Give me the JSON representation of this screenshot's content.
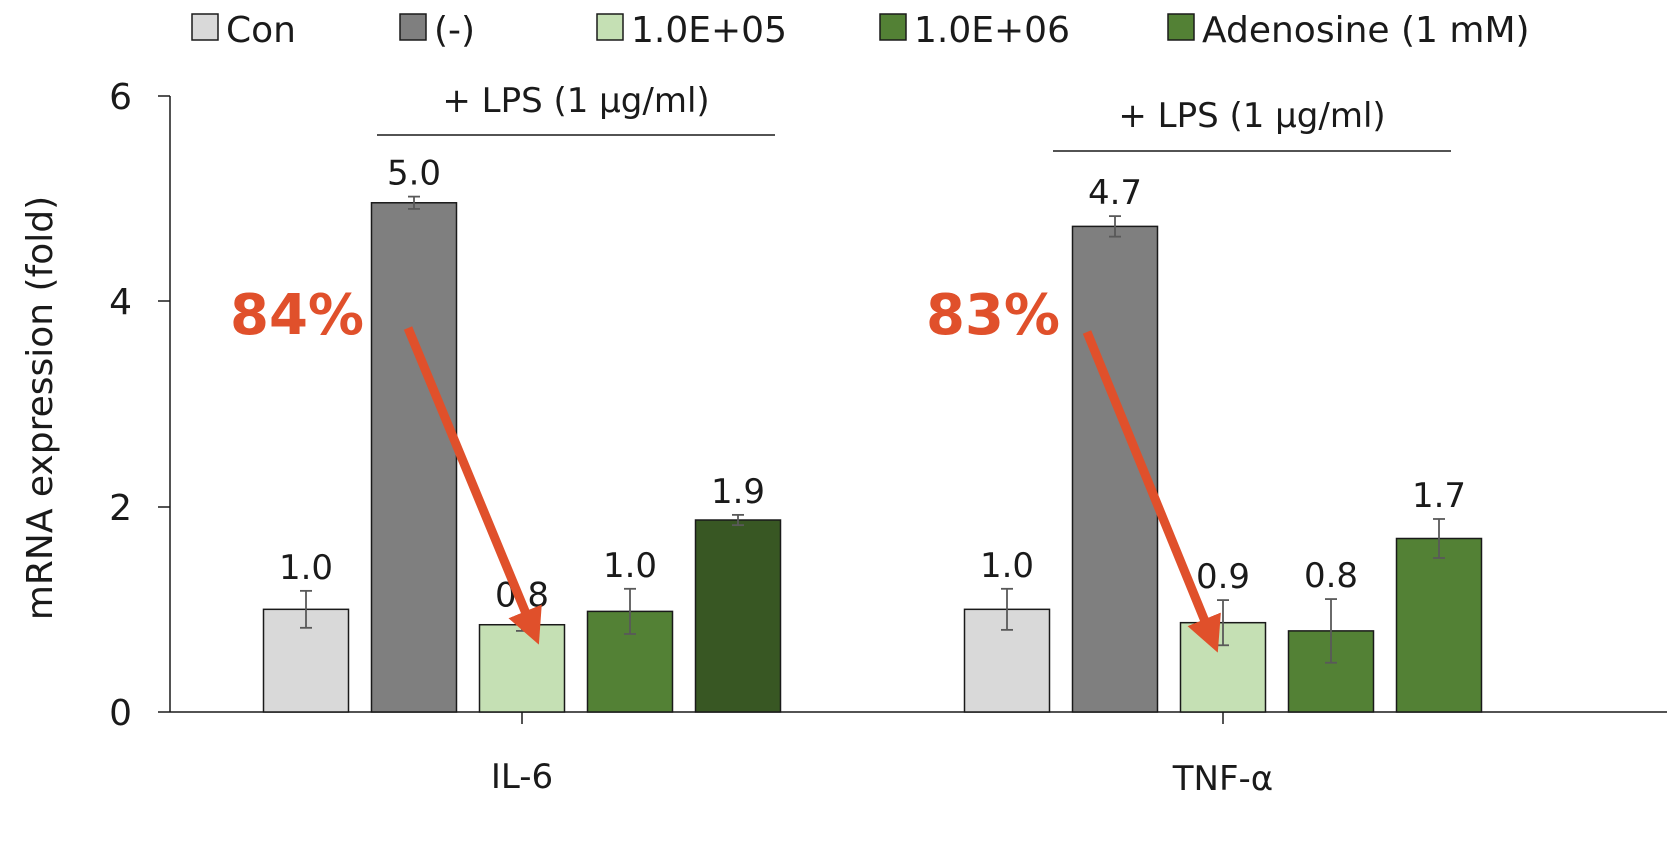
{
  "colors": {
    "con": "#d9d9d9",
    "neg": "#7f7f7f",
    "e05": "#c5e0b4",
    "e06": "#538135",
    "adenosine_il6": "#385723",
    "adenosine_tnf": "#538135",
    "arrow": "#e0502b",
    "axis": "#1a1a1a",
    "errorbar": "#595959"
  },
  "chart_data": {
    "type": "bar",
    "ylabel": "mRNA expression (fold)",
    "ylim": [
      0,
      6
    ],
    "yticks": [
      "0",
      "2",
      "4",
      "6"
    ],
    "categories": [
      "IL-6",
      "TNF-α"
    ],
    "series": [
      {
        "name": "Con",
        "values": [
          1.0,
          1.0
        ],
        "errors": [
          0.18,
          0.2
        ],
        "labels": [
          "1.0",
          "1.0"
        ]
      },
      {
        "name": "(-)",
        "values": [
          4.96,
          4.73
        ],
        "errors": [
          0.06,
          0.1
        ],
        "labels": [
          "5.0",
          "4.7"
        ]
      },
      {
        "name": "1.0E+05",
        "values": [
          0.85,
          0.87
        ],
        "errors": [
          0.06,
          0.22
        ],
        "labels": [
          "0.8",
          "0.9"
        ]
      },
      {
        "name": "1.0E+06",
        "values": [
          0.98,
          0.79
        ],
        "errors": [
          0.22,
          0.31
        ],
        "labels": [
          "1.0",
          "0.8"
        ]
      },
      {
        "name": "Adenosine (1 mM)",
        "values": [
          1.87,
          1.69
        ],
        "errors": [
          0.05,
          0.19
        ],
        "labels": [
          "1.9",
          "1.7"
        ]
      }
    ],
    "annotations": {
      "lps_label": "+ LPS (1 μg/ml)",
      "reductions": [
        "84%",
        "83%"
      ]
    },
    "legend_position": "top"
  }
}
